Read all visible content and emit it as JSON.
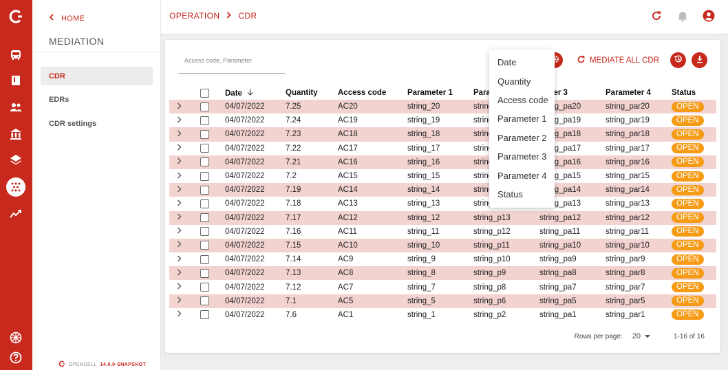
{
  "sidebar": {
    "home_label": "HOME",
    "section_title": "MEDIATION",
    "items": [
      {
        "label": "CDR",
        "active": true
      },
      {
        "label": "EDRs",
        "active": false
      },
      {
        "label": "CDR settings",
        "active": false
      }
    ],
    "brand_name": "OPENCELL",
    "version": "14.0.0-SNAPSHOT"
  },
  "rail_icons": [
    "opencell-logo-icon",
    "bus-icon",
    "book-icon",
    "users-icon",
    "bank-icon",
    "layers-icon",
    "mediation-icon",
    "trending-icon",
    "globe-icon",
    "help-icon"
  ],
  "breadcrumb": {
    "root": "OPERATION",
    "current": "CDR"
  },
  "search": {
    "placeholder": "Access code, Parameter"
  },
  "toolbar": {
    "mediate_label": "MEDIATE ALL CDR"
  },
  "table": {
    "columns": [
      "Date",
      "Quantity",
      "Access code",
      "Parameter 1",
      "Parameter 2",
      "Parameter 3",
      "Parameter 4",
      "Status"
    ],
    "visible_headers": {
      "date": "Date",
      "quantity": "Quantity",
      "access_code": "Access code",
      "param1": "Parameter 1",
      "param2": "Para",
      "param3": "meter 3",
      "param4": "Parameter 4",
      "status": "Status"
    },
    "rows": [
      {
        "date": "04/07/2022",
        "quantity": "7.25",
        "access_code": "AC20",
        "param1": "string_20",
        "param2": "string",
        "param3": "string_pa20",
        "param4": "string_par20",
        "status": "OPEN"
      },
      {
        "date": "04/07/2022",
        "quantity": "7.24",
        "access_code": "AC19",
        "param1": "string_19",
        "param2": "string",
        "param3": "string_pa19",
        "param4": "string_par19",
        "status": "OPEN"
      },
      {
        "date": "04/07/2022",
        "quantity": "7.23",
        "access_code": "AC18",
        "param1": "string_18",
        "param2": "string",
        "param3": "string_pa18",
        "param4": "string_par18",
        "status": "OPEN"
      },
      {
        "date": "04/07/2022",
        "quantity": "7.22",
        "access_code": "AC17",
        "param1": "string_17",
        "param2": "string",
        "param3": "string_pa17",
        "param4": "string_par17",
        "status": "OPEN"
      },
      {
        "date": "04/07/2022",
        "quantity": "7.21",
        "access_code": "AC16",
        "param1": "string_16",
        "param2": "string",
        "param3": "string_pa16",
        "param4": "string_par16",
        "status": "OPEN"
      },
      {
        "date": "04/07/2022",
        "quantity": "7.2",
        "access_code": "AC15",
        "param1": "string_15",
        "param2": "string",
        "param3": "string_pa15",
        "param4": "string_par15",
        "status": "OPEN"
      },
      {
        "date": "04/07/2022",
        "quantity": "7.19",
        "access_code": "AC14",
        "param1": "string_14",
        "param2": "string",
        "param3": "string_pa14",
        "param4": "string_par14",
        "status": "OPEN"
      },
      {
        "date": "04/07/2022",
        "quantity": "7.18",
        "access_code": "AC13",
        "param1": "string_13",
        "param2": "string",
        "param3": "string_pa13",
        "param4": "string_par13",
        "status": "OPEN"
      },
      {
        "date": "04/07/2022",
        "quantity": "7.17",
        "access_code": "AC12",
        "param1": "string_12",
        "param2": "string_p13",
        "param3": "string_pa12",
        "param4": "string_par12",
        "status": "OPEN"
      },
      {
        "date": "04/07/2022",
        "quantity": "7.16",
        "access_code": "AC11",
        "param1": "string_11",
        "param2": "string_p12",
        "param3": "string_pa11",
        "param4": "string_par11",
        "status": "OPEN"
      },
      {
        "date": "04/07/2022",
        "quantity": "7.15",
        "access_code": "AC10",
        "param1": "string_10",
        "param2": "string_p11",
        "param3": "string_pa10",
        "param4": "string_par10",
        "status": "OPEN"
      },
      {
        "date": "04/07/2022",
        "quantity": "7.14",
        "access_code": "AC9",
        "param1": "string_9",
        "param2": "string_p10",
        "param3": "string_pa9",
        "param4": "string_par9",
        "status": "OPEN"
      },
      {
        "date": "04/07/2022",
        "quantity": "7.13",
        "access_code": "AC8",
        "param1": "string_8",
        "param2": "string_p9",
        "param3": "string_pa8",
        "param4": "string_par8",
        "status": "OPEN"
      },
      {
        "date": "04/07/2022",
        "quantity": "7.12",
        "access_code": "AC7",
        "param1": "string_7",
        "param2": "string_p8",
        "param3": "string_pa7",
        "param4": "string_par7",
        "status": "OPEN"
      },
      {
        "date": "04/07/2022",
        "quantity": "7.1",
        "access_code": "AC5",
        "param1": "string_5",
        "param2": "string_p6",
        "param3": "string_pa5",
        "param4": "string_par5",
        "status": "OPEN"
      },
      {
        "date": "04/07/2022",
        "quantity": "7.6",
        "access_code": "AC1",
        "param1": "string_1",
        "param2": "string_p2",
        "param3": "string_pa1",
        "param4": "string_par1",
        "status": "OPEN"
      }
    ]
  },
  "pagination": {
    "rows_per_page_label": "Rows per page:",
    "rows_per_page": "20",
    "range": "1-16 of 16"
  },
  "column_menu": {
    "items": [
      "Date",
      "Quantity",
      "Access code",
      "Parameter 1",
      "Parameter 2",
      "Parameter 3",
      "Parameter 4",
      "Status"
    ]
  },
  "colors": {
    "brand": "#c8291d",
    "row_stripe": "#f2d3d0",
    "status_open": "#f59b16"
  }
}
